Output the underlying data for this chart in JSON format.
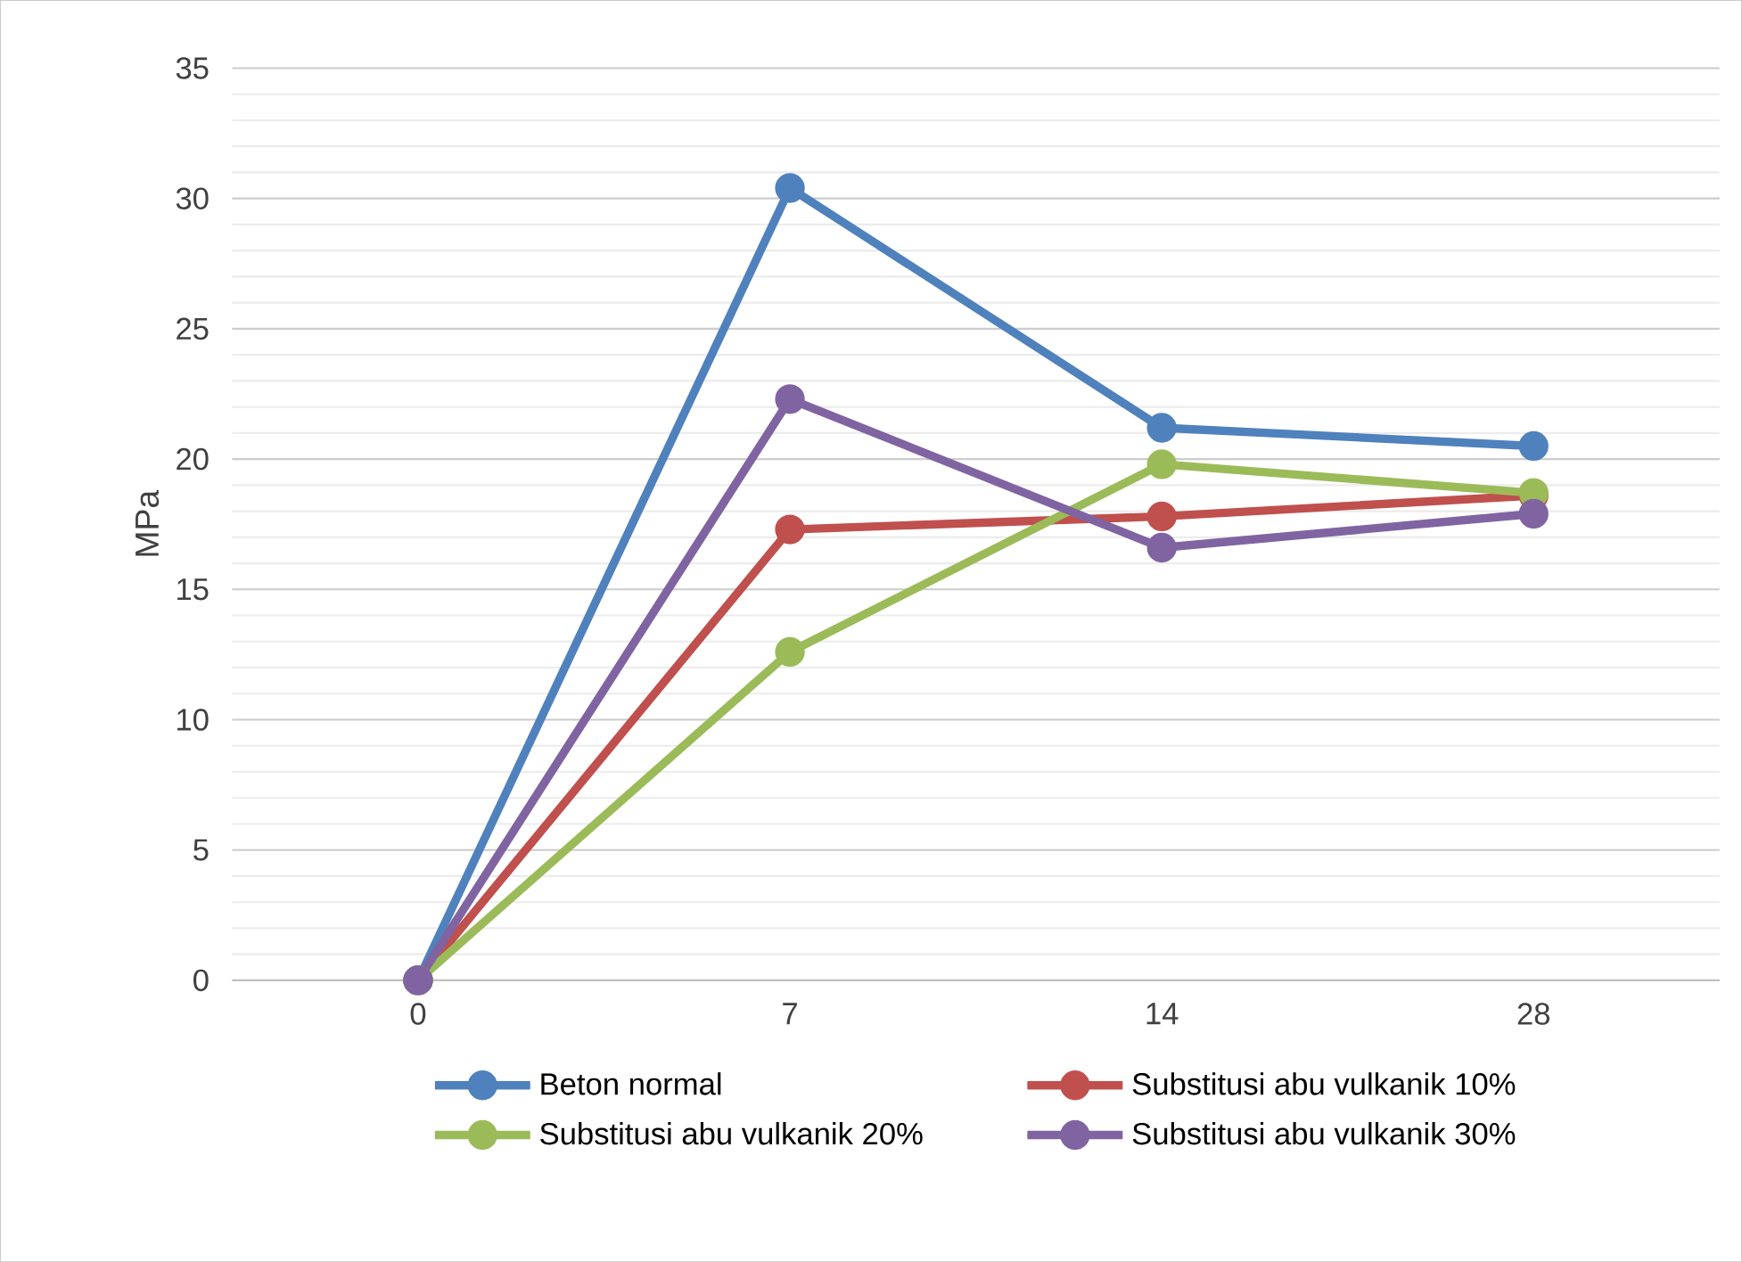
{
  "chart_data": {
    "type": "line",
    "ylabel": "MPa",
    "categories": [
      "0",
      "7",
      "14",
      "28"
    ],
    "series": [
      {
        "name": "Beton normal",
        "color": "#4f81bd",
        "values": [
          0,
          30.4,
          21.2,
          20.5
        ]
      },
      {
        "name": "Substitusi abu vulkanik 10%",
        "color": "#c0504d",
        "values": [
          0,
          17.3,
          17.8,
          18.6
        ]
      },
      {
        "name": "Substitusi abu vulkanik 20%",
        "color": "#9bbb59",
        "values": [
          0,
          12.6,
          19.8,
          18.7
        ]
      },
      {
        "name": "Substitusi abu vulkanik 30%",
        "color": "#8064a2",
        "values": [
          0,
          22.3,
          16.6,
          17.9
        ]
      }
    ],
    "ylim": [
      0,
      35
    ],
    "yticks": [
      0,
      5,
      10,
      15,
      20,
      25,
      30,
      35
    ],
    "grid": "y",
    "legend": "bottom",
    "marker": "circle",
    "line_style": "solid"
  }
}
